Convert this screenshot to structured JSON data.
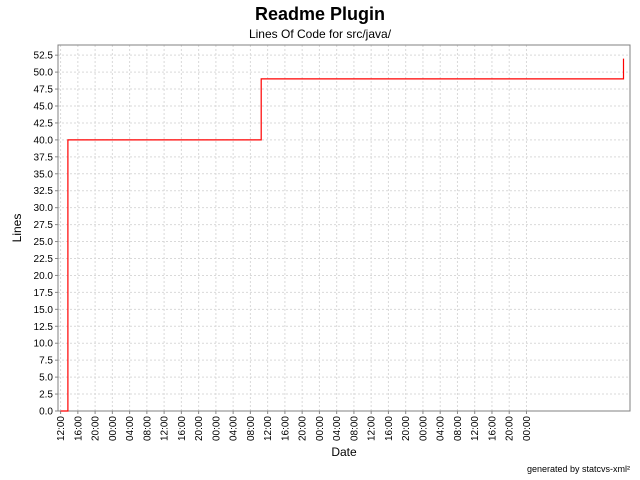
{
  "chart_data": {
    "type": "line",
    "title": "Readme Plugin",
    "subtitle": "Lines Of Code for src/java/",
    "xlabel": "Date",
    "ylabel": "Lines",
    "ylim": [
      0,
      54
    ],
    "yticks": [
      "0.0",
      "2.5",
      "5.0",
      "7.5",
      "10.0",
      "12.5",
      "15.0",
      "17.5",
      "20.0",
      "22.5",
      "25.0",
      "27.5",
      "30.0",
      "32.5",
      "35.0",
      "37.5",
      "40.0",
      "42.5",
      "45.0",
      "47.5",
      "50.0",
      "52.5"
    ],
    "xticks": [
      "12:00",
      "16:00",
      "20:00",
      "00:00",
      "04:00",
      "08:00",
      "12:00",
      "16:00",
      "20:00",
      "00:00",
      "04:00",
      "08:00",
      "12:00",
      "16:00",
      "20:00",
      "00:00",
      "04:00",
      "08:00",
      "12:00",
      "16:00",
      "20:00",
      "00:00",
      "04:00",
      "08:00",
      "12:00",
      "16:00",
      "20:00",
      "00:00"
    ],
    "x_time_hours": [
      0,
      1.7,
      1.7,
      46.5,
      46.5,
      130.5,
      130.5
    ],
    "x_range_hours": [
      -0.6,
      132.0
    ],
    "y_values": [
      0,
      0,
      40,
      40,
      49,
      49,
      52
    ],
    "grid": true,
    "line_color": "#ff0000"
  },
  "footer": "generated by statcvs-xml²"
}
